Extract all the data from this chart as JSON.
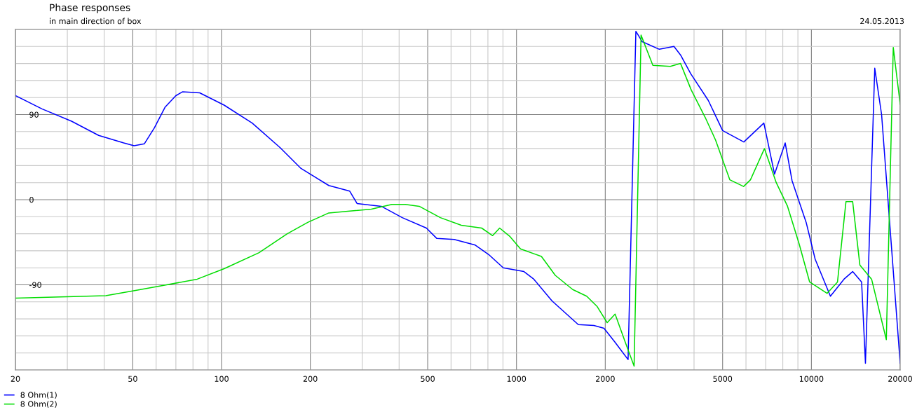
{
  "chart_data": {
    "type": "line",
    "title": "Phase responses",
    "subtitle": "in main direction of box",
    "annotations": [
      "24.05.2013"
    ],
    "log": "x",
    "grid": true,
    "legend": "bottom left",
    "line_style": "solid",
    "marker": "none",
    "xlim": [
      20,
      20000
    ],
    "xticks": [
      20,
      {
        "value": 30,
        "label": null
      },
      {
        "value": 40,
        "label": null
      },
      50,
      {
        "value": 60,
        "label": null
      },
      {
        "value": 70,
        "label": null
      },
      {
        "value": 80,
        "label": null
      },
      {
        "value": 90,
        "label": null
      },
      100,
      200,
      {
        "value": 300,
        "label": null
      },
      {
        "value": 400,
        "label": null
      },
      500,
      {
        "value": 600,
        "label": null
      },
      {
        "value": 700,
        "label": null
      },
      {
        "value": 800,
        "label": null
      },
      {
        "value": 900,
        "label": null
      },
      1000,
      2000,
      {
        "value": 3000,
        "label": null
      },
      {
        "value": 4000,
        "label": null
      },
      5000,
      {
        "value": 6000,
        "label": null
      },
      {
        "value": 7000,
        "label": null
      },
      {
        "value": 8000,
        "label": null
      },
      {
        "value": 9000,
        "label": null
      },
      10000,
      20000
    ],
    "ylim": [
      -180,
      180
    ],
    "yticks": [
      {
        "value": -180,
        "label": null
      },
      {
        "value": -162,
        "label": null
      },
      {
        "value": -144,
        "label": null
      },
      {
        "value": -126,
        "label": null
      },
      {
        "value": -108,
        "label": null
      },
      -90,
      {
        "value": -72,
        "label": null
      },
      {
        "value": -54,
        "label": null
      },
      {
        "value": -36,
        "label": null
      },
      {
        "value": -18,
        "label": null
      },
      0,
      {
        "value": 18,
        "label": null
      },
      {
        "value": 36,
        "label": null
      },
      {
        "value": 54,
        "label": null
      },
      {
        "value": 72,
        "label": null
      },
      90,
      {
        "value": 108,
        "label": null
      },
      {
        "value": 126,
        "label": null
      },
      {
        "value": 144,
        "label": null
      },
      {
        "value": 162,
        "label": null
      },
      {
        "value": 180,
        "label": null
      }
    ],
    "series": [
      {
        "name": "8 Ohm(1)",
        "color": "#0000ff",
        "x": [
          20,
          24.6,
          31,
          38.3,
          46.6,
          50.5,
          54.7,
          59.2,
          64.4,
          70,
          73.7,
          84.3,
          102,
          127,
          158,
          186,
          231,
          272,
          288,
          348,
          410,
          495,
          537,
          615,
          725,
          805,
          902,
          1060,
          1145,
          1320,
          1620,
          1830,
          1980,
          2150,
          2390,
          2540,
          2670,
          3050,
          3420,
          3600,
          3900,
          4470,
          5000,
          5900,
          6900,
          7500,
          8150,
          8600,
          9600,
          10300,
          11600,
          12900,
          13800,
          14800,
          15250,
          16400,
          17300,
          20000
        ],
        "values": [
          110,
          96,
          83,
          68,
          60,
          57,
          59,
          76,
          98,
          110,
          114,
          113,
          100,
          81,
          55,
          33,
          15,
          9,
          -4,
          -7,
          -19,
          -30,
          -41,
          -42,
          -48,
          -58,
          -72,
          -76,
          -84,
          -107,
          -132,
          -133,
          -136,
          -150,
          -169,
          178,
          167,
          159,
          162,
          153,
          133,
          105,
          73,
          61,
          81,
          27,
          60,
          20,
          -24,
          -63,
          -102,
          -84,
          -76,
          -87,
          -173,
          139,
          90,
          -173
        ]
      },
      {
        "name": "8 Ohm(2)",
        "color": "#00dd00",
        "x": [
          20,
          40.5,
          51.9,
          62.7,
          82.7,
          102,
          134,
          167,
          196,
          231,
          272,
          322,
          378,
          420,
          468,
          552,
          650,
          762,
          830,
          877,
          951,
          1032,
          1215,
          1354,
          1552,
          1730,
          1878,
          2030,
          2160,
          2334,
          2505,
          2645,
          2900,
          3324,
          3600,
          3913,
          4364,
          4733,
          5290,
          5890,
          6214,
          6930,
          7600,
          8300,
          9094,
          9863,
          11300,
          12260,
          13100,
          13800,
          14600,
          16000,
          17950,
          18950,
          20000
        ],
        "values": [
          -104,
          -101.5,
          -95.5,
          -91,
          -84,
          -73,
          -56,
          -36,
          -24,
          -14,
          -12,
          -10,
          -5,
          -5,
          -7,
          -19,
          -27,
          -30,
          -38,
          -30,
          -39,
          -52,
          -60,
          -80,
          -95,
          -102,
          -113,
          -130,
          -121,
          -150,
          -176,
          174,
          142,
          141,
          144,
          116,
          87,
          63,
          21,
          14,
          21,
          54,
          18,
          -7,
          -47,
          -87,
          -99,
          -87,
          -2,
          -2,
          -69,
          -84,
          -148,
          161,
          101
        ]
      }
    ]
  }
}
